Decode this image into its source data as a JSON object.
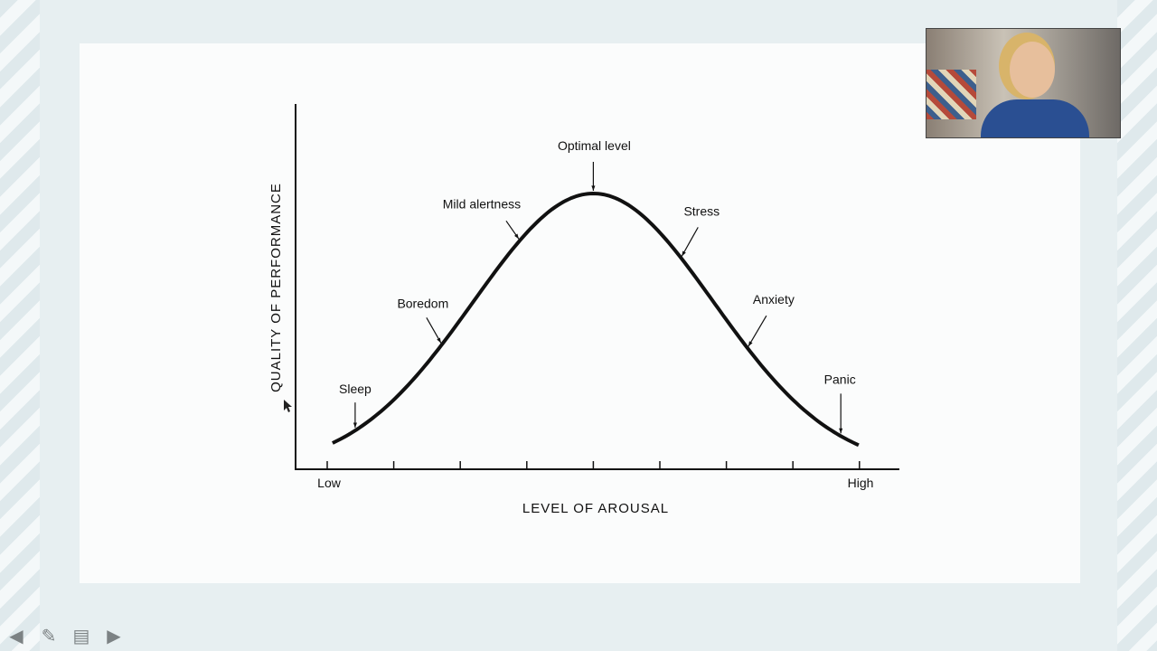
{
  "chart_data": {
    "type": "line",
    "title": "",
    "xlabel": "LEVEL OF AROUSAL",
    "ylabel": "QUALITY OF PERFORMANCE",
    "x_tick_labels": [
      {
        "tick": 0,
        "label": "Low"
      },
      {
        "tick": 8,
        "label": "High"
      }
    ],
    "x_ticks": [
      0,
      1,
      2,
      3,
      4,
      5,
      6,
      7,
      8
    ],
    "xlim": [
      0,
      8
    ],
    "grid": false,
    "curve": {
      "shape": "inverted-U (bell)",
      "x_range": [
        0.08,
        8.0
      ],
      "peak_x": 4
    },
    "annotations": [
      {
        "label": "Sleep",
        "x": 0.42
      },
      {
        "label": "Boredom",
        "x": 1.71
      },
      {
        "label": "Mild alertness",
        "x": 2.88
      },
      {
        "label": "Optimal level",
        "x": 4.0
      },
      {
        "label": "Stress",
        "x": 5.33
      },
      {
        "label": "Anxiety",
        "x": 6.33
      },
      {
        "label": "Panic",
        "x": 7.72
      }
    ]
  },
  "navigation": {
    "icons": [
      "arrow-left-icon",
      "pencil-icon",
      "notes-icon",
      "arrow-right-icon"
    ]
  },
  "colors": {
    "background": "#e7eff1",
    "slide": "#fbfcfc",
    "ink": "#111111",
    "nav_icon": "#7c8284"
  }
}
